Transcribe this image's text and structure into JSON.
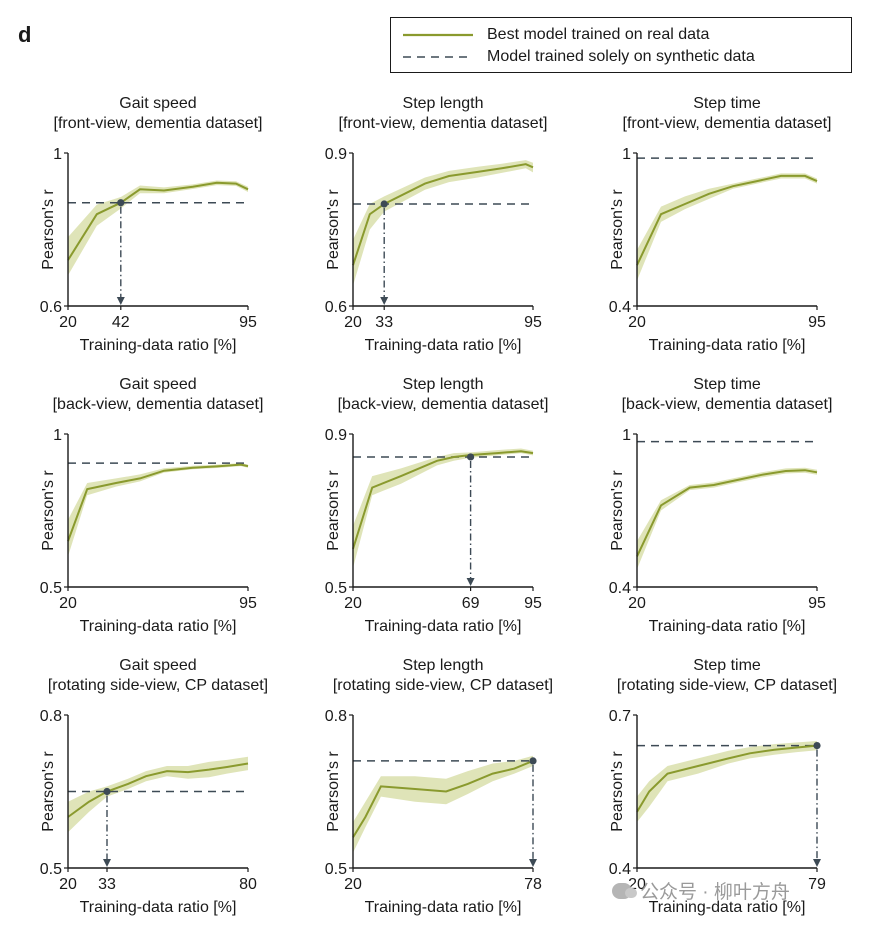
{
  "panel_label": "d",
  "legend": {
    "real_label": "Best model trained on real data",
    "synthetic_label": "Model trained solely on synthetic data"
  },
  "colors": {
    "line": "#8a9a2e",
    "band": "#dfe4b8",
    "dashed": "#3d4a55",
    "marker": "#3d4a55",
    "axis": "#1a1a1a"
  },
  "watermark": "公众号 · 柳叶方舟",
  "chart_data": [
    {
      "type": "line",
      "title": "Gait speed",
      "subtitle": "[front-view, dementia dataset]",
      "xlabel": "Training-data ratio [%]",
      "ylabel": "Pearson's r",
      "xlim": [
        20,
        95
      ],
      "ylim": [
        0.6,
        1.0
      ],
      "xticks": [
        20,
        42,
        95
      ],
      "yticks": [
        "0.6",
        "1"
      ],
      "series": [
        {
          "name": "Best model trained on real data",
          "x": [
            20,
            32,
            42,
            50,
            60,
            72,
            82,
            90,
            95
          ],
          "y": [
            0.72,
            0.84,
            0.87,
            0.905,
            0.902,
            0.912,
            0.922,
            0.92,
            0.905
          ],
          "lower": [
            0.68,
            0.81,
            0.855,
            0.895,
            0.895,
            0.906,
            0.916,
            0.914,
            0.898
          ],
          "upper": [
            0.78,
            0.865,
            0.885,
            0.915,
            0.91,
            0.918,
            0.928,
            0.926,
            0.912
          ]
        }
      ],
      "synthetic": 0.87,
      "crossover_x": 42
    },
    {
      "type": "line",
      "title": "Step length",
      "subtitle": "[front-view, dementia dataset]",
      "xlabel": "Training-data ratio [%]",
      "ylabel": "Pearson's r",
      "xlim": [
        20,
        95
      ],
      "ylim": [
        0.6,
        0.9
      ],
      "xticks": [
        20,
        33,
        95
      ],
      "yticks": [
        "0.6",
        "0.9"
      ],
      "series": [
        {
          "name": "Best model trained on real data",
          "x": [
            20,
            27,
            33,
            50,
            60,
            72,
            82,
            92,
            95
          ],
          "y": [
            0.68,
            0.78,
            0.8,
            0.84,
            0.855,
            0.863,
            0.87,
            0.878,
            0.872
          ],
          "lower": [
            0.64,
            0.75,
            0.785,
            0.828,
            0.843,
            0.852,
            0.861,
            0.87,
            0.862
          ],
          "upper": [
            0.73,
            0.8,
            0.815,
            0.852,
            0.865,
            0.873,
            0.879,
            0.886,
            0.881
          ]
        }
      ],
      "synthetic": 0.8,
      "crossover_x": 33
    },
    {
      "type": "line",
      "title": "Step time",
      "subtitle": "[front-view, dementia dataset]",
      "xlabel": "Training-data ratio [%]",
      "ylabel": "Pearson's r",
      "xlim": [
        20,
        95
      ],
      "ylim": [
        0.4,
        1.0
      ],
      "xticks": [
        20,
        95
      ],
      "yticks": [
        "0.4",
        "1"
      ],
      "series": [
        {
          "name": "Best model trained on real data",
          "x": [
            20,
            30,
            40,
            50,
            60,
            70,
            80,
            90,
            95
          ],
          "y": [
            0.56,
            0.76,
            0.8,
            0.84,
            0.87,
            0.89,
            0.91,
            0.91,
            0.89
          ],
          "lower": [
            0.5,
            0.73,
            0.78,
            0.82,
            0.86,
            0.88,
            0.9,
            0.9,
            0.88
          ],
          "upper": [
            0.62,
            0.79,
            0.83,
            0.86,
            0.88,
            0.9,
            0.92,
            0.92,
            0.9
          ]
        }
      ],
      "synthetic": 0.98,
      "crossover_x": null
    },
    {
      "type": "line",
      "title": "Gait speed",
      "subtitle": "[back-view, dementia dataset]",
      "xlabel": "Training-data ratio [%]",
      "ylabel": "Pearson's r",
      "xlim": [
        20,
        95
      ],
      "ylim": [
        0.5,
        1.0
      ],
      "xticks": [
        20,
        95
      ],
      "yticks": [
        "0.5",
        "1"
      ],
      "series": [
        {
          "name": "Best model trained on real data",
          "x": [
            20,
            28,
            40,
            50,
            60,
            72,
            82,
            92,
            95
          ],
          "y": [
            0.65,
            0.82,
            0.84,
            0.855,
            0.88,
            0.89,
            0.894,
            0.9,
            0.895
          ],
          "lower": [
            0.6,
            0.8,
            0.828,
            0.845,
            0.874,
            0.885,
            0.889,
            0.895,
            0.89
          ],
          "upper": [
            0.72,
            0.84,
            0.855,
            0.868,
            0.888,
            0.896,
            0.9,
            0.905,
            0.9
          ]
        }
      ],
      "synthetic": 0.905,
      "crossover_x": null
    },
    {
      "type": "line",
      "title": "Step length",
      "subtitle": "[back-view, dementia dataset]",
      "xlabel": "Training-data ratio [%]",
      "ylabel": "Pearson's r",
      "xlim": [
        20,
        95
      ],
      "ylim": [
        0.5,
        0.9
      ],
      "xticks": [
        20,
        69,
        95
      ],
      "yticks": [
        "0.5",
        "0.9"
      ],
      "series": [
        {
          "name": "Best model trained on real data",
          "x": [
            20,
            28,
            40,
            55,
            62,
            69,
            80,
            90,
            95
          ],
          "y": [
            0.6,
            0.76,
            0.79,
            0.83,
            0.84,
            0.845,
            0.85,
            0.855,
            0.85
          ],
          "lower": [
            0.55,
            0.74,
            0.77,
            0.818,
            0.83,
            0.838,
            0.844,
            0.85,
            0.844
          ],
          "upper": [
            0.66,
            0.79,
            0.81,
            0.84,
            0.85,
            0.852,
            0.858,
            0.862,
            0.856
          ]
        }
      ],
      "synthetic": 0.84,
      "crossover_x": 69
    },
    {
      "type": "line",
      "title": "Step time",
      "subtitle": "[back-view, dementia dataset]",
      "xlabel": "Training-data ratio [%]",
      "ylabel": "Pearson's r",
      "xlim": [
        20,
        95
      ],
      "ylim": [
        0.4,
        1.0
      ],
      "xticks": [
        20,
        95
      ],
      "yticks": [
        "0.4",
        "1"
      ],
      "series": [
        {
          "name": "Best model trained on real data",
          "x": [
            20,
            30,
            42,
            52,
            62,
            72,
            82,
            90,
            95
          ],
          "y": [
            0.52,
            0.72,
            0.79,
            0.8,
            0.82,
            0.84,
            0.855,
            0.858,
            0.85
          ],
          "lower": [
            0.47,
            0.7,
            0.78,
            0.79,
            0.81,
            0.83,
            0.845,
            0.848,
            0.84
          ],
          "upper": [
            0.58,
            0.74,
            0.8,
            0.81,
            0.83,
            0.85,
            0.865,
            0.868,
            0.86
          ]
        }
      ],
      "synthetic": 0.97,
      "crossover_x": null
    },
    {
      "type": "line",
      "title": "Gait speed",
      "subtitle": "[rotating side-view, CP dataset]",
      "xlabel": "Training-data ratio [%]",
      "ylabel": "Pearson's r",
      "xlim": [
        20,
        80
      ],
      "ylim": [
        0.5,
        0.8
      ],
      "xticks": [
        20,
        33,
        80
      ],
      "yticks": [
        "0.5",
        "0.8"
      ],
      "series": [
        {
          "name": "Best model trained on real data",
          "x": [
            20,
            27,
            33,
            40,
            46,
            53,
            60,
            67,
            73,
            80
          ],
          "y": [
            0.6,
            0.63,
            0.65,
            0.665,
            0.68,
            0.69,
            0.688,
            0.693,
            0.698,
            0.705
          ],
          "lower": [
            0.57,
            0.61,
            0.64,
            0.655,
            0.67,
            0.68,
            0.675,
            0.678,
            0.685,
            0.692
          ],
          "upper": [
            0.63,
            0.65,
            0.66,
            0.675,
            0.69,
            0.7,
            0.7,
            0.708,
            0.712,
            0.718
          ]
        }
      ],
      "synthetic": 0.65,
      "crossover_x": 33
    },
    {
      "type": "line",
      "title": "Step length",
      "subtitle": "[rotating side-view, CP dataset]",
      "xlabel": "Training-data ratio [%]",
      "ylabel": "Pearson's r",
      "xlim": [
        20,
        78
      ],
      "ylim": [
        0.5,
        0.8
      ],
      "xticks": [
        20,
        78
      ],
      "yticks": [
        "0.5",
        "0.8"
      ],
      "series": [
        {
          "name": "Best model trained on real data",
          "x": [
            20,
            24,
            29,
            40,
            50,
            57,
            65,
            72,
            78
          ],
          "y": [
            0.56,
            0.6,
            0.66,
            0.655,
            0.65,
            0.665,
            0.685,
            0.695,
            0.71
          ],
          "lower": [
            0.53,
            0.58,
            0.64,
            0.63,
            0.625,
            0.645,
            0.67,
            0.685,
            0.7
          ],
          "upper": [
            0.59,
            0.63,
            0.68,
            0.68,
            0.675,
            0.69,
            0.705,
            0.71,
            0.72
          ]
        }
      ],
      "synthetic": 0.71,
      "crossover_x": 78
    },
    {
      "type": "line",
      "title": "Step time",
      "subtitle": "[rotating side-view, CP dataset]",
      "xlabel": "Training-data ratio [%]",
      "ylabel": "Pearson's r",
      "xlim": [
        20,
        79
      ],
      "ylim": [
        0.4,
        0.7
      ],
      "xticks": [
        20,
        79
      ],
      "yticks": [
        "0.4",
        "0.7"
      ],
      "series": [
        {
          "name": "Best model trained on real data",
          "x": [
            20,
            24,
            30,
            40,
            50,
            57,
            65,
            72,
            79
          ],
          "y": [
            0.51,
            0.55,
            0.585,
            0.6,
            0.615,
            0.625,
            0.632,
            0.636,
            0.64
          ],
          "lower": [
            0.49,
            0.52,
            0.57,
            0.585,
            0.605,
            0.615,
            0.622,
            0.627,
            0.631
          ],
          "upper": [
            0.54,
            0.57,
            0.6,
            0.615,
            0.63,
            0.637,
            0.643,
            0.646,
            0.649
          ]
        }
      ],
      "synthetic": 0.64,
      "crossover_x": 79
    }
  ]
}
